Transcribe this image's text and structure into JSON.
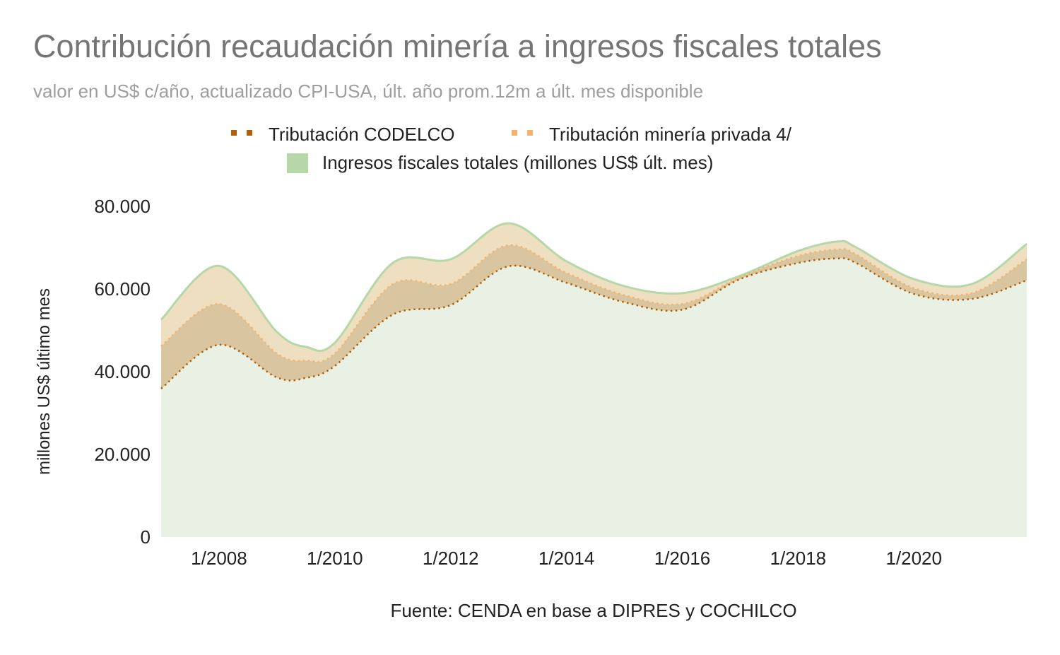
{
  "chart_data": {
    "type": "area",
    "title": "Contribución recaudación minería a ingresos fiscales totales",
    "subtitle": "valor en US$ c/año, actualizado CPI-USA, últ. año prom.12m a últ. mes disponible",
    "ylabel": "millones US$ último mes",
    "xlabel": "",
    "footnote": "Fuente: CENDA en base a DIPRES y COCHILCO",
    "ylim": [
      0,
      80000
    ],
    "xlim": [
      2007.0,
      2021.95
    ],
    "yticks": [
      0,
      20000,
      40000,
      60000,
      80000
    ],
    "ytick_labels": [
      "0",
      "20.000",
      "40.000",
      "60.000",
      "80.000"
    ],
    "xticks": [
      2008,
      2010,
      2012,
      2014,
      2016,
      2018,
      2020
    ],
    "xtick_labels": [
      "1/2008",
      "1/2010",
      "1/2012",
      "1/2014",
      "1/2016",
      "1/2018",
      "1/2020"
    ],
    "grid": false,
    "legend_position": "top",
    "x": [
      2007.0,
      2008.0,
      2009.0,
      2009.5,
      2010.0,
      2011.0,
      2012.0,
      2013.0,
      2014.0,
      2015.0,
      2016.0,
      2017.0,
      2018.0,
      2018.7,
      2019.0,
      2020.0,
      2021.0,
      2021.95
    ],
    "series": [
      {
        "name": "Tributación CODELCO",
        "color": "#b45f06",
        "style": "dotted",
        "values": [
          35900,
          46500,
          38600,
          38500,
          41400,
          53800,
          56100,
          65500,
          61500,
          56800,
          55000,
          62400,
          66300,
          67400,
          66300,
          58800,
          57600,
          62100
        ]
      },
      {
        "name": "Tributación minería privada 4/",
        "color": "#f6b26b",
        "style": "dotted",
        "values": [
          46200,
          56400,
          44400,
          42700,
          44400,
          61200,
          61200,
          70600,
          63900,
          58500,
          56400,
          62900,
          68000,
          69600,
          68400,
          60200,
          59000,
          67200
        ]
      },
      {
        "name": "Ingresos fiscales totales (millones US$ últ. mes)",
        "color": "#b6d7a8",
        "style": "area",
        "values": [
          52600,
          65600,
          49600,
          46000,
          47000,
          66300,
          67200,
          75900,
          66700,
          60700,
          59000,
          63200,
          69200,
          71500,
          70100,
          62400,
          61200,
          70900
        ]
      }
    ],
    "fill_colors": {
      "base": "#e8f1e3",
      "codelco_band": "#d9c6a0",
      "private_band": "#eddfc0"
    }
  }
}
